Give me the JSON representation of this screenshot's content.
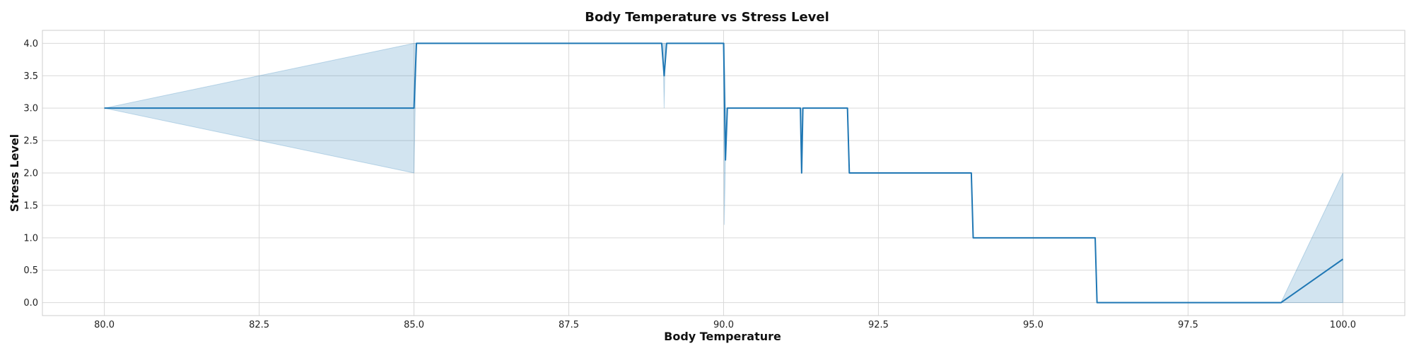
{
  "chart_data": {
    "type": "line",
    "title": "Body Temperature vs Stress Level",
    "xlabel": "Body Temperature",
    "ylabel": "Stress Level",
    "xlim": [
      79,
      101
    ],
    "ylim": [
      -0.2,
      4.2
    ],
    "x_ticks": [
      80.0,
      82.5,
      85.0,
      87.5,
      90.0,
      92.5,
      95.0,
      97.5,
      100.0
    ],
    "x_tick_labels": [
      "80.0",
      "82.5",
      "85.0",
      "87.5",
      "90.0",
      "92.5",
      "95.0",
      "97.5",
      "100.0"
    ],
    "y_ticks": [
      0.0,
      0.5,
      1.0,
      1.5,
      2.0,
      2.5,
      3.0,
      3.5,
      4.0
    ],
    "y_tick_labels": [
      "0.0",
      "0.5",
      "1.0",
      "1.5",
      "2.0",
      "2.5",
      "3.0",
      "3.5",
      "4.0"
    ],
    "grid": true,
    "line_color": "#1f77b4",
    "band_color": "#1f77b4",
    "series": [
      {
        "x": [
          80.0,
          85.0,
          85.04,
          89.0,
          89.04,
          89.08,
          90.0,
          90.03,
          90.06,
          91.24,
          91.26,
          91.28,
          92.0,
          92.03,
          94.0,
          94.03,
          96.0,
          96.03,
          99.0,
          100.0
        ],
        "values": [
          3.0,
          3.0,
          4.0,
          4.0,
          3.5,
          4.0,
          4.0,
          2.2,
          3.0,
          3.0,
          2.0,
          3.0,
          3.0,
          2.0,
          2.0,
          1.0,
          1.0,
          0.0,
          0.0,
          0.67
        ]
      }
    ],
    "confidence_band": {
      "x": [
        80.0,
        85.0,
        85.04,
        89.0,
        89.02,
        89.04,
        89.06,
        89.08,
        90.0,
        90.01,
        90.03,
        90.06,
        91.24,
        91.25,
        91.26,
        91.27,
        91.28,
        92.0,
        92.03,
        94.0,
        94.03,
        96.0,
        96.03,
        99.0,
        100.0
      ],
      "lower": [
        3.0,
        2.0,
        4.0,
        4.0,
        4.0,
        3.0,
        4.0,
        4.0,
        4.0,
        1.2,
        2.2,
        3.0,
        3.0,
        3.0,
        2.0,
        3.0,
        3.0,
        3.0,
        2.0,
        2.0,
        1.0,
        1.0,
        0.0,
        0.0,
        0.0
      ],
      "upper": [
        3.0,
        4.0,
        4.0,
        4.0,
        4.0,
        4.0,
        4.0,
        4.0,
        4.0,
        4.0,
        3.0,
        3.0,
        3.0,
        3.0,
        2.0,
        3.0,
        3.0,
        3.0,
        2.0,
        2.0,
        1.0,
        1.0,
        0.0,
        0.0,
        2.0
      ]
    }
  }
}
